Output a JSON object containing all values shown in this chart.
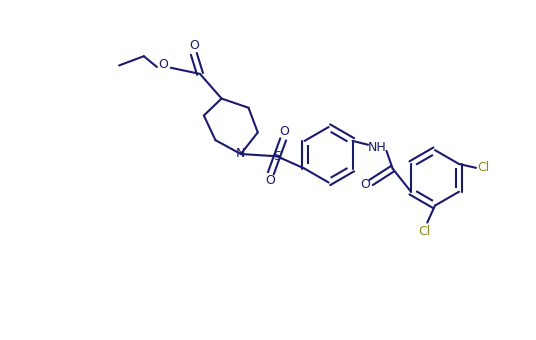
{
  "bg_color": "#ffffff",
  "bond_color": "#1a1a6e",
  "cl_color": "#8b8b1a",
  "lw": 1.5,
  "fs": 9,
  "figsize": [
    5.36,
    3.4
  ],
  "dpi": 100,
  "xlim": [
    0,
    536
  ],
  "ylim": [
    0,
    340
  ]
}
